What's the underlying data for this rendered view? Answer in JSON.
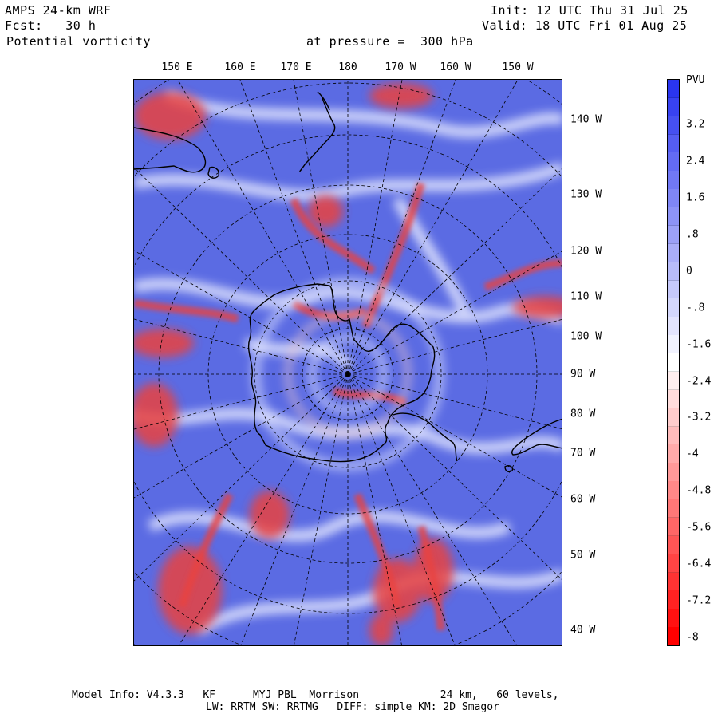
{
  "header": {
    "model_title": "AMPS 24-km WRF",
    "forecast": "Fcst:   30 h",
    "field": "Potential vorticity",
    "level": "at pressure =  300 hPa",
    "init": "Init: 12 UTC Thu 31 Jul 25",
    "valid": "Valid: 18 UTC Fri 01 Aug 25"
  },
  "longitude_labels": [
    "150 E",
    "160 E",
    "170 E",
    "180",
    "170 W",
    "160 W",
    "150 W"
  ],
  "latitude_labels": [
    "140 W",
    "130 W",
    "120 W",
    "110 W",
    "100 W",
    "90 W",
    "80 W",
    "70 W",
    "60 W",
    "50 W",
    "40 W"
  ],
  "colorbar": {
    "unit": "PVU",
    "tick_labels": [
      "3.2",
      "2.4",
      "1.6",
      ".8",
      "0",
      "-.8",
      "-1.6",
      "-2.4",
      "-3.2",
      "-4",
      "-4.8",
      "-5.6",
      "-6.4",
      "-7.2",
      "-8"
    ],
    "top_color": "#2a35f0",
    "mid_color": "#ffffff",
    "bottom_color": "#ff0000"
  },
  "map_colors": {
    "background": "#5b6be3",
    "positive_anomaly": "#e9423f",
    "light": "#ffffff",
    "coastline": "#000000",
    "grid": "#000000"
  },
  "footer": {
    "line1": "Model Info: V4.3.3   KF      MYJ PBL  Morrison             24 km,   60 levels,",
    "line2": "LW: RRTM SW: RRTMG   DIFF: simple KM: 2D Smagor"
  }
}
